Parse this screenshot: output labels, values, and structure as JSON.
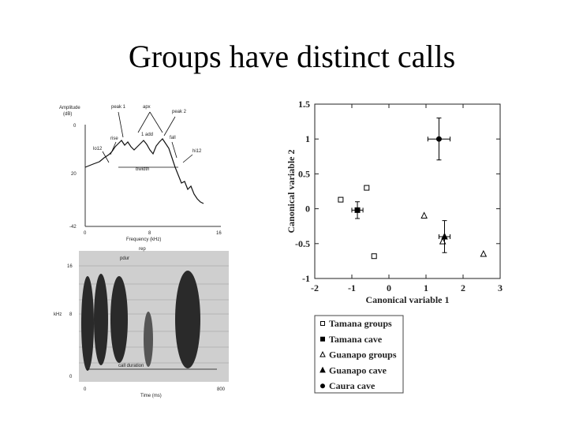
{
  "title": "Groups have distinct calls",
  "figure": {
    "spectrum": {
      "ylabel": [
        "Amplitude",
        "(dB)"
      ],
      "labels": [
        "peak 1",
        "apx",
        "peak 2",
        "rise",
        "1 add",
        "fall",
        "lo12",
        "hi12",
        "bwidth"
      ],
      "yticks": [
        "0",
        "20",
        "-42"
      ],
      "xticks": [
        "0",
        "8",
        "16"
      ],
      "xlabel": "Frequency (kHz)"
    },
    "spectrogram": {
      "ylabel": "kHz",
      "yticks": [
        "16",
        "8",
        "0"
      ],
      "labels": [
        "rep",
        "pdur",
        "call duration"
      ],
      "xticks": [
        "0",
        "800"
      ],
      "xlabel": "Time (ms)"
    }
  },
  "chart_data": {
    "type": "scatter",
    "xlabel": "Canonical variable 1",
    "ylabel": "Canonical variable 2",
    "xlim": [
      -2,
      3
    ],
    "xticks": [
      -2,
      -1,
      0,
      1,
      2,
      3
    ],
    "ylim": [
      -1,
      1.5
    ],
    "yticks": [
      -1,
      -0.5,
      0,
      0.5,
      1,
      1.5
    ],
    "series": [
      {
        "name": "Tamana groups",
        "color": "#000000",
        "marker": "square-open",
        "x": [
          -1.3,
          -0.6,
          -0.4
        ],
        "y": [
          0.13,
          0.3,
          -0.68
        ]
      },
      {
        "name": "Tamana cave",
        "color": "#000000",
        "marker": "square",
        "x": [
          -0.85
        ],
        "y": [
          -0.02
        ],
        "x_err": [
          0.15
        ],
        "y_err": [
          0.12
        ]
      },
      {
        "name": "Guanapo groups",
        "color": "#000000",
        "marker": "triangle-open",
        "x": [
          0.95,
          1.45,
          2.55
        ],
        "y": [
          -0.1,
          -0.47,
          -0.65
        ]
      },
      {
        "name": "Guanapo cave",
        "color": "#000000",
        "marker": "triangle",
        "x": [
          1.5
        ],
        "y": [
          -0.4
        ],
        "x_err": [
          0.15
        ],
        "y_err": [
          0.23
        ]
      },
      {
        "name": "Caura cave",
        "color": "#000000",
        "marker": "circle",
        "x": [
          1.35
        ],
        "y": [
          1.0
        ],
        "x_err": [
          0.3
        ],
        "y_err": [
          0.3
        ]
      }
    ]
  }
}
